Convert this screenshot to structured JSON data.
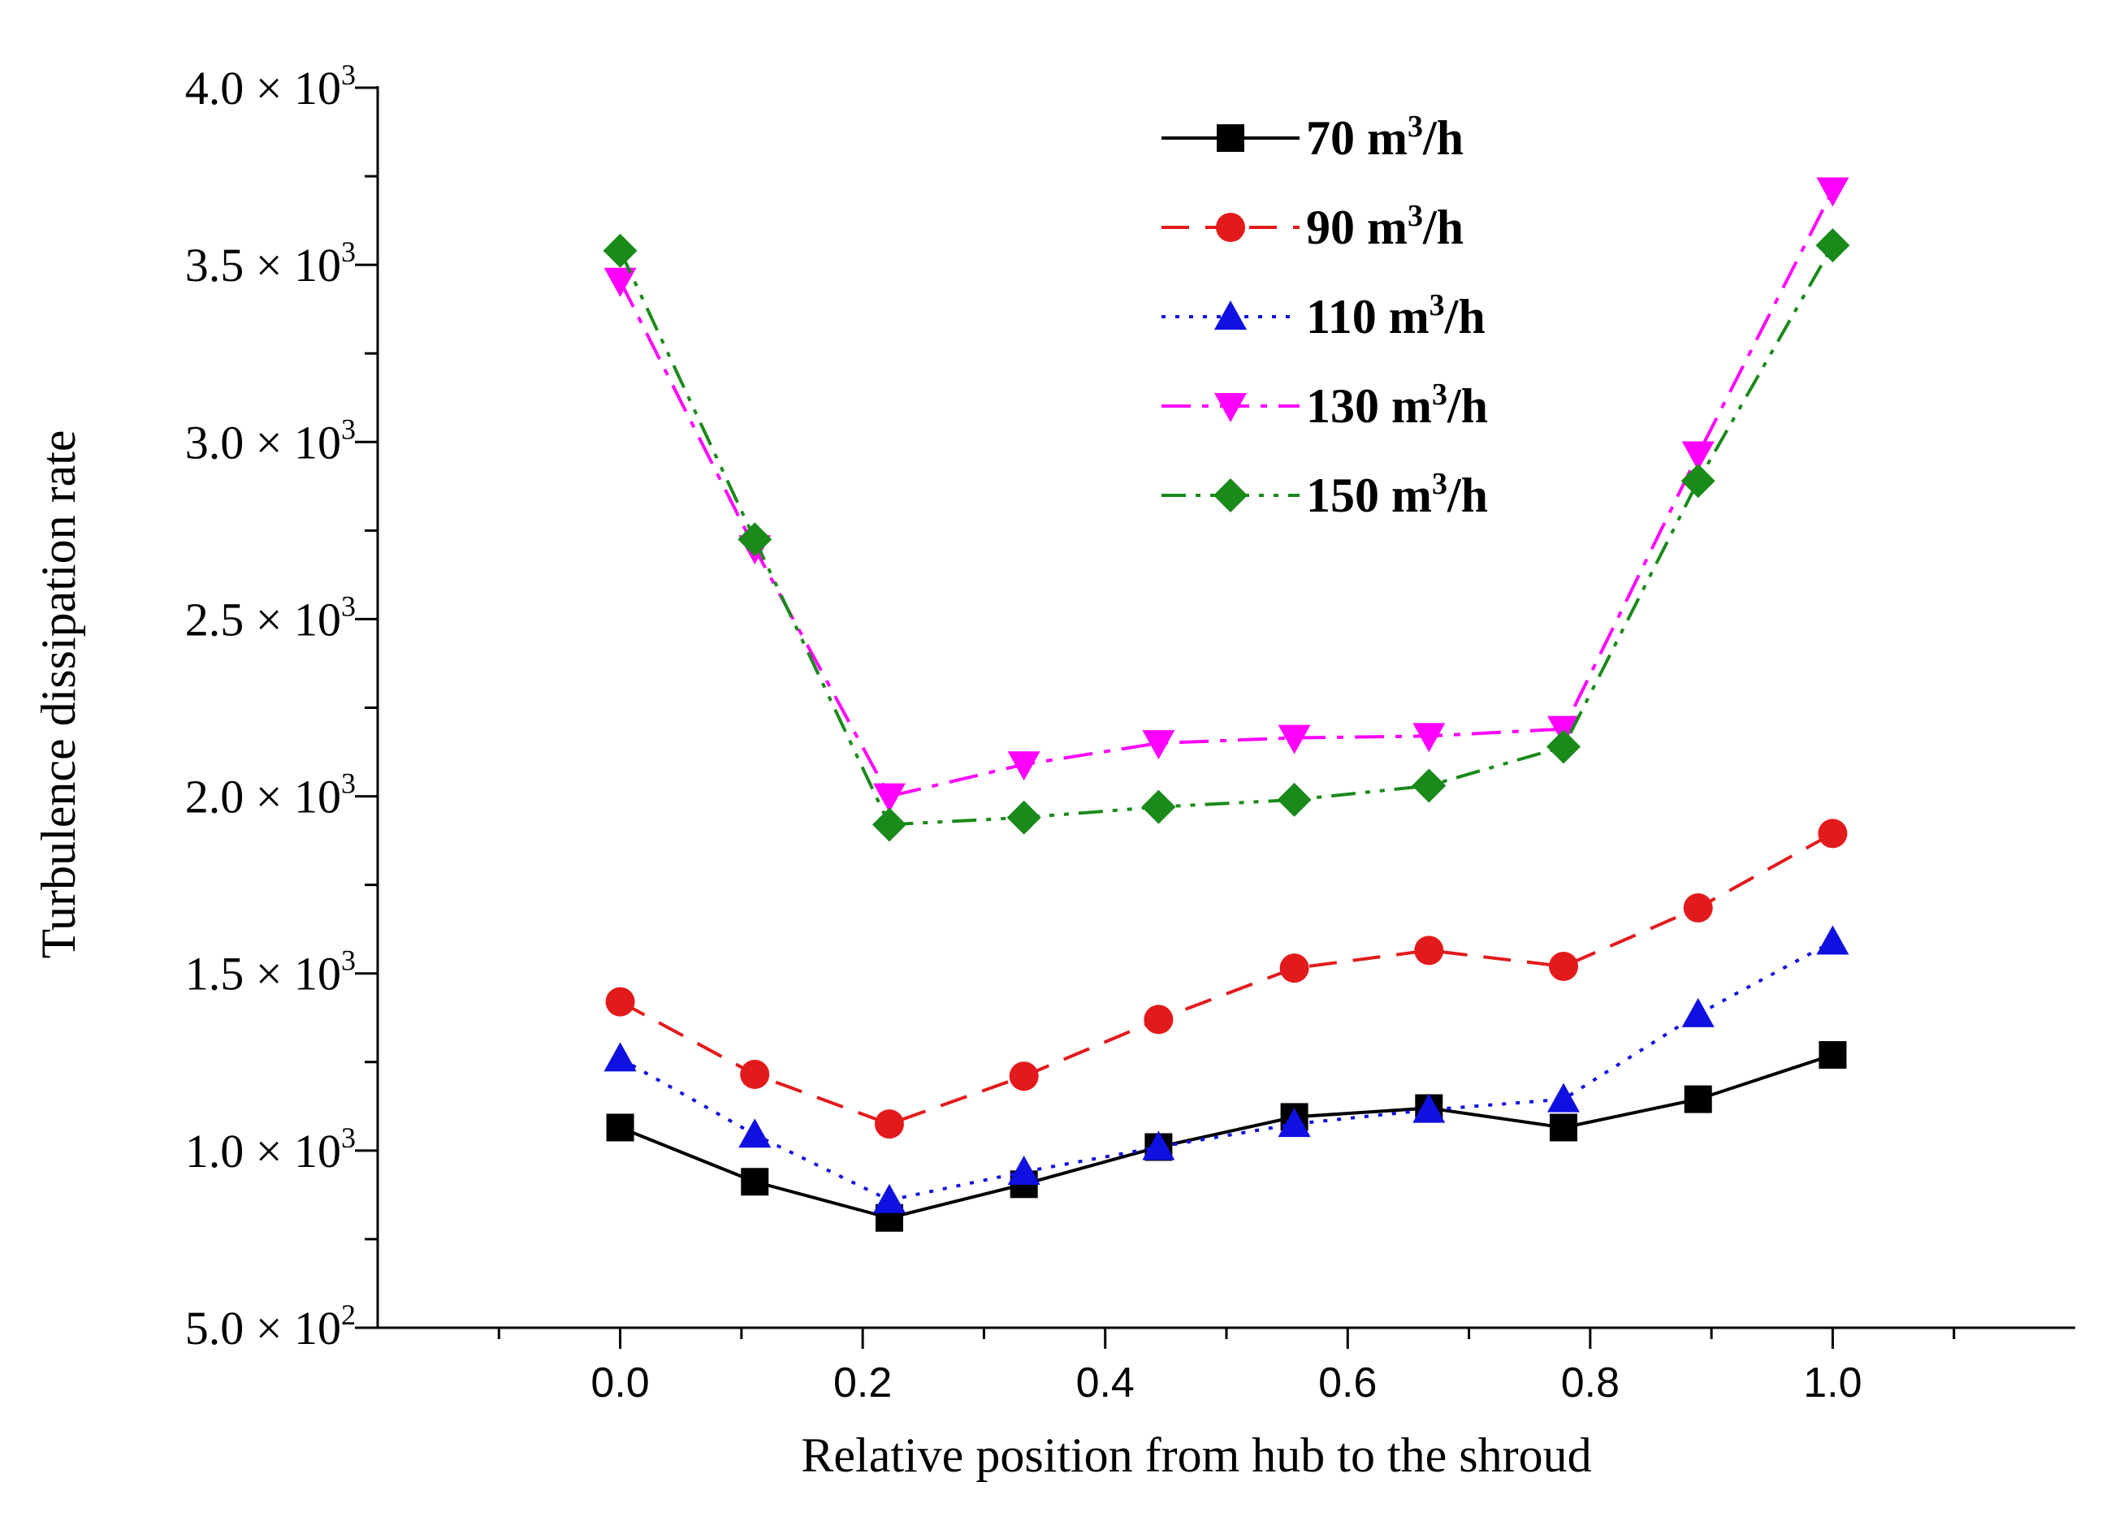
{
  "chart_data": {
    "type": "line",
    "xlabel": "Relative position from hub to the shroud",
    "ylabel": "Turbulence dissipation rate",
    "xlim": [
      -0.2,
      1.2
    ],
    "ylim": [
      500,
      4000
    ],
    "x_ticks": [
      0.0,
      0.2,
      0.4,
      0.6,
      0.8,
      1.0
    ],
    "x_tick_labels": [
      "0.0",
      "0.2",
      "0.4",
      "0.6",
      "0.8",
      "1.0"
    ],
    "y_ticks": [
      500,
      1000,
      1500,
      2000,
      2500,
      3000,
      3500,
      4000
    ],
    "y_tick_labels": [
      {
        "mantissa": "5.0",
        "times": "×",
        "base": "10",
        "exp": "2"
      },
      {
        "mantissa": "1.0",
        "times": "×",
        "base": "10",
        "exp": "3"
      },
      {
        "mantissa": "1.5",
        "times": "×",
        "base": "10",
        "exp": "3"
      },
      {
        "mantissa": "2.0",
        "times": "×",
        "base": "10",
        "exp": "3"
      },
      {
        "mantissa": "2.5",
        "times": "×",
        "base": "10",
        "exp": "3"
      },
      {
        "mantissa": "3.0",
        "times": "×",
        "base": "10",
        "exp": "3"
      },
      {
        "mantissa": "3.5",
        "times": "×",
        "base": "10",
        "exp": "3"
      },
      {
        "mantissa": "4.0",
        "times": "×",
        "base": "10",
        "exp": "3"
      }
    ],
    "x": [
      0.0,
      0.111,
      0.222,
      0.333,
      0.444,
      0.556,
      0.667,
      0.778,
      0.889,
      1.0
    ],
    "legend_position": "top-center",
    "grid": false,
    "series": [
      {
        "name": "70 m",
        "unit_sup": "3",
        "unit_tail": "/h",
        "color": "#000000",
        "marker": "square",
        "dash": "solid",
        "values": [
          1065,
          912,
          810,
          905,
          1010,
          1095,
          1120,
          1065,
          1145,
          1270
        ]
      },
      {
        "name": "90 m",
        "unit_sup": "3",
        "unit_tail": "/h",
        "color": "#e31a1c",
        "marker": "circle",
        "dash": "dash",
        "values": [
          1420,
          1215,
          1075,
          1210,
          1370,
          1515,
          1565,
          1520,
          1685,
          1895
        ]
      },
      {
        "name": "110 m",
        "unit_sup": "3",
        "unit_tail": "/h",
        "color": "#1010e0",
        "marker": "triangle-up",
        "dash": "dot",
        "values": [
          1260,
          1045,
          860,
          940,
          1010,
          1075,
          1115,
          1145,
          1385,
          1590
        ]
      },
      {
        "name": "130 m",
        "unit_sup": "3",
        "unit_tail": "/h",
        "color": "#ff00ff",
        "marker": "triangle-down",
        "dash": "dashdot",
        "values": [
          3455,
          2700,
          2000,
          2090,
          2150,
          2165,
          2170,
          2190,
          2965,
          3710
        ]
      },
      {
        "name": "150 m",
        "unit_sup": "3",
        "unit_tail": "/h",
        "color": "#1a8a1a",
        "marker": "diamond",
        "dash": "dashdotdot",
        "values": [
          3540,
          2725,
          1920,
          1940,
          1970,
          1990,
          2030,
          2140,
          2890,
          3555
        ]
      }
    ]
  }
}
